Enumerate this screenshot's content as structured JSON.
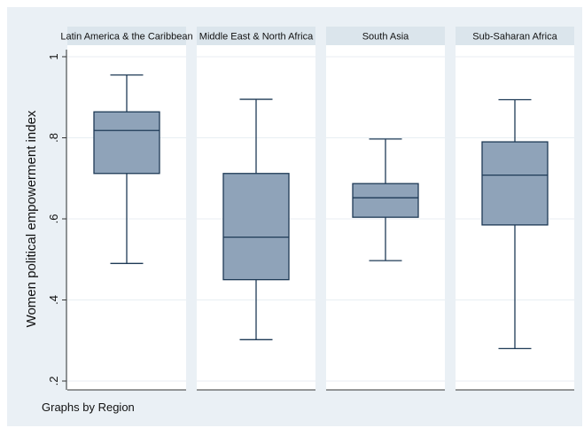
{
  "chart_data": {
    "type": "box",
    "ylabel": "Women political empowerment index",
    "ylim": [
      0.2,
      1.0
    ],
    "yticks": [
      0.2,
      0.4,
      0.6,
      0.8,
      1.0
    ],
    "ytick_labels": [
      ".2",
      ".4",
      ".6",
      ".8",
      "1"
    ],
    "grid": true,
    "panels": [
      {
        "name": "Latin America & the Caribbean",
        "min": 0.49,
        "q1": 0.712,
        "median": 0.818,
        "q3": 0.864,
        "max": 0.955
      },
      {
        "name": "Middle East & North Africa",
        "min": 0.302,
        "q1": 0.45,
        "median": 0.555,
        "q3": 0.712,
        "max": 0.895
      },
      {
        "name": "South Asia",
        "min": 0.497,
        "q1": 0.604,
        "median": 0.652,
        "q3": 0.687,
        "max": 0.797
      },
      {
        "name": "Sub-Saharan Africa",
        "min": 0.28,
        "q1": 0.585,
        "median": 0.708,
        "q3": 0.79,
        "max": 0.894
      }
    ],
    "note": "Graphs by Region",
    "colors": {
      "background": "#eaf0f5",
      "plot_region": "#ffffff",
      "header": "#dbe5ec",
      "box_fill": "#8fa3b9",
      "box_stroke": "#1e3a56",
      "grid": "#e8eef3"
    }
  }
}
